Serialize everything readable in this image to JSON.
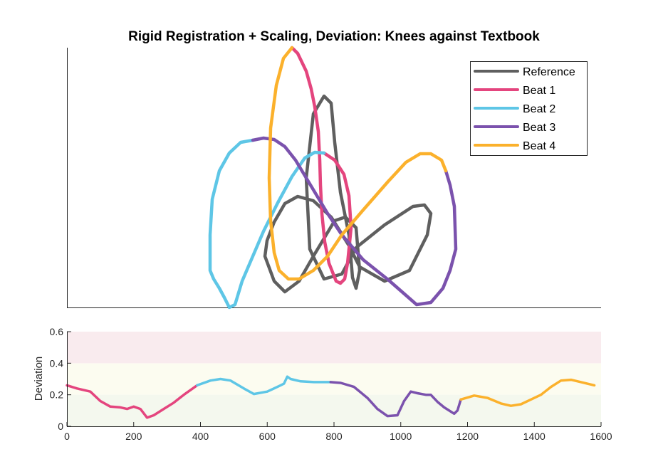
{
  "chart_data": [
    {
      "type": "line",
      "title": "Rigid Registration + Scaling, Deviation: Knees against Textbook",
      "legend_position": "top-right",
      "legend": [
        {
          "name": "Reference",
          "color": "#5f5f5f"
        },
        {
          "name": "Beat 1",
          "color": "#e4457e"
        },
        {
          "name": "Beat 2",
          "color": "#5ec6e6"
        },
        {
          "name": "Beat 3",
          "color": "#7b52ad"
        },
        {
          "name": "Beat 4",
          "color": "#fbb12c"
        }
      ],
      "axes_visible": "left and bottom lines only, no ticks",
      "series": [
        {
          "name": "Reference",
          "color": "#5f5f5f",
          "points": [
            [
              375,
              338
            ],
            [
              385,
              312
            ],
            [
              400,
              286
            ],
            [
              418,
              276
            ],
            [
              440,
              282
            ],
            [
              465,
              305
            ],
            [
              490,
              345
            ],
            [
              505,
              375
            ],
            [
              540,
              395
            ],
            [
              575,
              380
            ],
            [
              600,
              330
            ],
            [
              605,
              300
            ],
            [
              596,
              288
            ],
            [
              580,
              290
            ],
            [
              540,
              316
            ],
            [
              500,
              348
            ],
            [
              480,
              385
            ],
            [
              455,
              392
            ],
            [
              435,
              350
            ],
            [
              430,
              250
            ],
            [
              440,
              160
            ],
            [
              455,
              135
            ],
            [
              465,
              145
            ],
            [
              470,
              200
            ],
            [
              478,
              270
            ],
            [
              490,
              330
            ],
            [
              495,
              390
            ],
            [
              500,
              405
            ],
            [
              505,
              380
            ],
            [
              500,
              320
            ],
            [
              485,
              305
            ],
            [
              470,
              310
            ],
            [
              440,
              360
            ],
            [
              420,
              395
            ],
            [
              400,
              410
            ],
            [
              385,
              395
            ],
            [
              372,
              360
            ],
            [
              375,
              338
            ]
          ]
        },
        {
          "name": "Beat 1",
          "color": "#e4457e",
          "points": [
            [
              410,
              67
            ],
            [
              418,
              75
            ],
            [
              430,
              100
            ],
            [
              437,
              125
            ],
            [
              442,
              150
            ],
            [
              447,
              185
            ],
            [
              449,
              225
            ],
            [
              450,
              260
            ],
            [
              452,
              300
            ],
            [
              456,
              340
            ],
            [
              462,
              370
            ],
            [
              472,
              395
            ],
            [
              478,
              398
            ],
            [
              484,
              392
            ],
            [
              488,
              370
            ],
            [
              493,
              320
            ],
            [
              490,
              275
            ],
            [
              483,
              245
            ],
            [
              470,
              225
            ],
            [
              455,
              215
            ]
          ]
        },
        {
          "name": "Beat 2",
          "color": "#5ec6e6",
          "points": [
            [
              455,
              215
            ],
            [
              442,
              214
            ],
            [
              428,
              222
            ],
            [
              410,
              248
            ],
            [
              390,
              285
            ],
            [
              370,
              325
            ],
            [
              355,
              360
            ],
            [
              340,
              395
            ],
            [
              330,
              428
            ],
            [
              322,
              432
            ],
            [
              315,
              418
            ],
            [
              308,
              405
            ],
            [
              300,
              392
            ],
            [
              295,
              380
            ],
            [
              295,
              330
            ],
            [
              298,
              280
            ],
            [
              308,
              240
            ],
            [
              322,
              215
            ],
            [
              338,
              200
            ],
            [
              355,
              197
            ]
          ]
        },
        {
          "name": "Beat 3",
          "color": "#7b52ad",
          "points": [
            [
              355,
              197
            ],
            [
              370,
              194
            ],
            [
              385,
              196
            ],
            [
              400,
              206
            ],
            [
              415,
              225
            ],
            [
              430,
              250
            ],
            [
              445,
              275
            ],
            [
              460,
              300
            ],
            [
              480,
              330
            ],
            [
              510,
              365
            ],
            [
              545,
              393
            ],
            [
              585,
              428
            ],
            [
              605,
              425
            ],
            [
              622,
              405
            ],
            [
              632,
              380
            ],
            [
              640,
              350
            ],
            [
              638,
              290
            ],
            [
              632,
              260
            ],
            [
              626,
              240
            ]
          ]
        },
        {
          "name": "Beat 4",
          "color": "#fbb12c",
          "points": [
            [
              626,
              240
            ],
            [
              620,
              225
            ],
            [
              605,
              216
            ],
            [
              590,
              216
            ],
            [
              570,
              228
            ],
            [
              545,
              255
            ],
            [
              510,
              295
            ],
            [
              480,
              330
            ],
            [
              460,
              360
            ],
            [
              440,
              380
            ],
            [
              420,
              392
            ],
            [
              405,
              392
            ],
            [
              392,
              380
            ],
            [
              385,
              355
            ],
            [
              380,
              310
            ],
            [
              378,
              250
            ],
            [
              380,
              180
            ],
            [
              388,
              120
            ],
            [
              398,
              82
            ],
            [
              410,
              67
            ]
          ]
        }
      ]
    },
    {
      "type": "line",
      "ylabel": "Deviation",
      "xlabel": "",
      "xlim": [
        0,
        1600
      ],
      "ylim": [
        0,
        0.6
      ],
      "xticks": [
        "0",
        "200",
        "400",
        "600",
        "800",
        "1000",
        "1200",
        "1400",
        "1600"
      ],
      "yticks": [
        "0",
        "0.2",
        "0.4",
        "0.6"
      ],
      "bands": [
        {
          "from": 0,
          "to": 0.2,
          "color": "#f4f8ee"
        },
        {
          "from": 0.2,
          "to": 0.4,
          "color": "#fcfcf0"
        },
        {
          "from": 0.4,
          "to": 0.6,
          "color": "#f9ebee"
        }
      ],
      "series": [
        {
          "name": "Beat 1",
          "color": "#e4457e",
          "x": [
            0,
            30,
            70,
            100,
            130,
            160,
            180,
            200,
            220,
            240,
            260,
            290,
            320,
            350,
            390
          ],
          "y": [
            0.26,
            0.24,
            0.22,
            0.16,
            0.125,
            0.12,
            0.11,
            0.125,
            0.11,
            0.055,
            0.07,
            0.11,
            0.15,
            0.2,
            0.26
          ]
        },
        {
          "name": "Beat 2",
          "color": "#5ec6e6",
          "x": [
            390,
            430,
            460,
            490,
            530,
            560,
            600,
            640,
            650,
            660,
            670,
            700,
            740,
            790
          ],
          "y": [
            0.26,
            0.29,
            0.3,
            0.29,
            0.24,
            0.205,
            0.22,
            0.26,
            0.27,
            0.315,
            0.3,
            0.285,
            0.28,
            0.28
          ]
        },
        {
          "name": "Beat 3",
          "color": "#7b52ad",
          "x": [
            790,
            820,
            860,
            900,
            930,
            960,
            990,
            1010,
            1030,
            1050,
            1075,
            1090,
            1110,
            1130,
            1160,
            1170,
            1180
          ],
          "y": [
            0.28,
            0.275,
            0.25,
            0.18,
            0.11,
            0.065,
            0.07,
            0.16,
            0.22,
            0.21,
            0.2,
            0.2,
            0.155,
            0.12,
            0.08,
            0.1,
            0.17
          ]
        },
        {
          "name": "Beat 4",
          "color": "#fbb12c",
          "x": [
            1180,
            1220,
            1260,
            1300,
            1330,
            1360,
            1390,
            1420,
            1450,
            1480,
            1510,
            1540,
            1580
          ],
          "y": [
            0.17,
            0.195,
            0.18,
            0.145,
            0.13,
            0.14,
            0.17,
            0.2,
            0.25,
            0.29,
            0.295,
            0.28,
            0.26
          ]
        }
      ]
    }
  ]
}
